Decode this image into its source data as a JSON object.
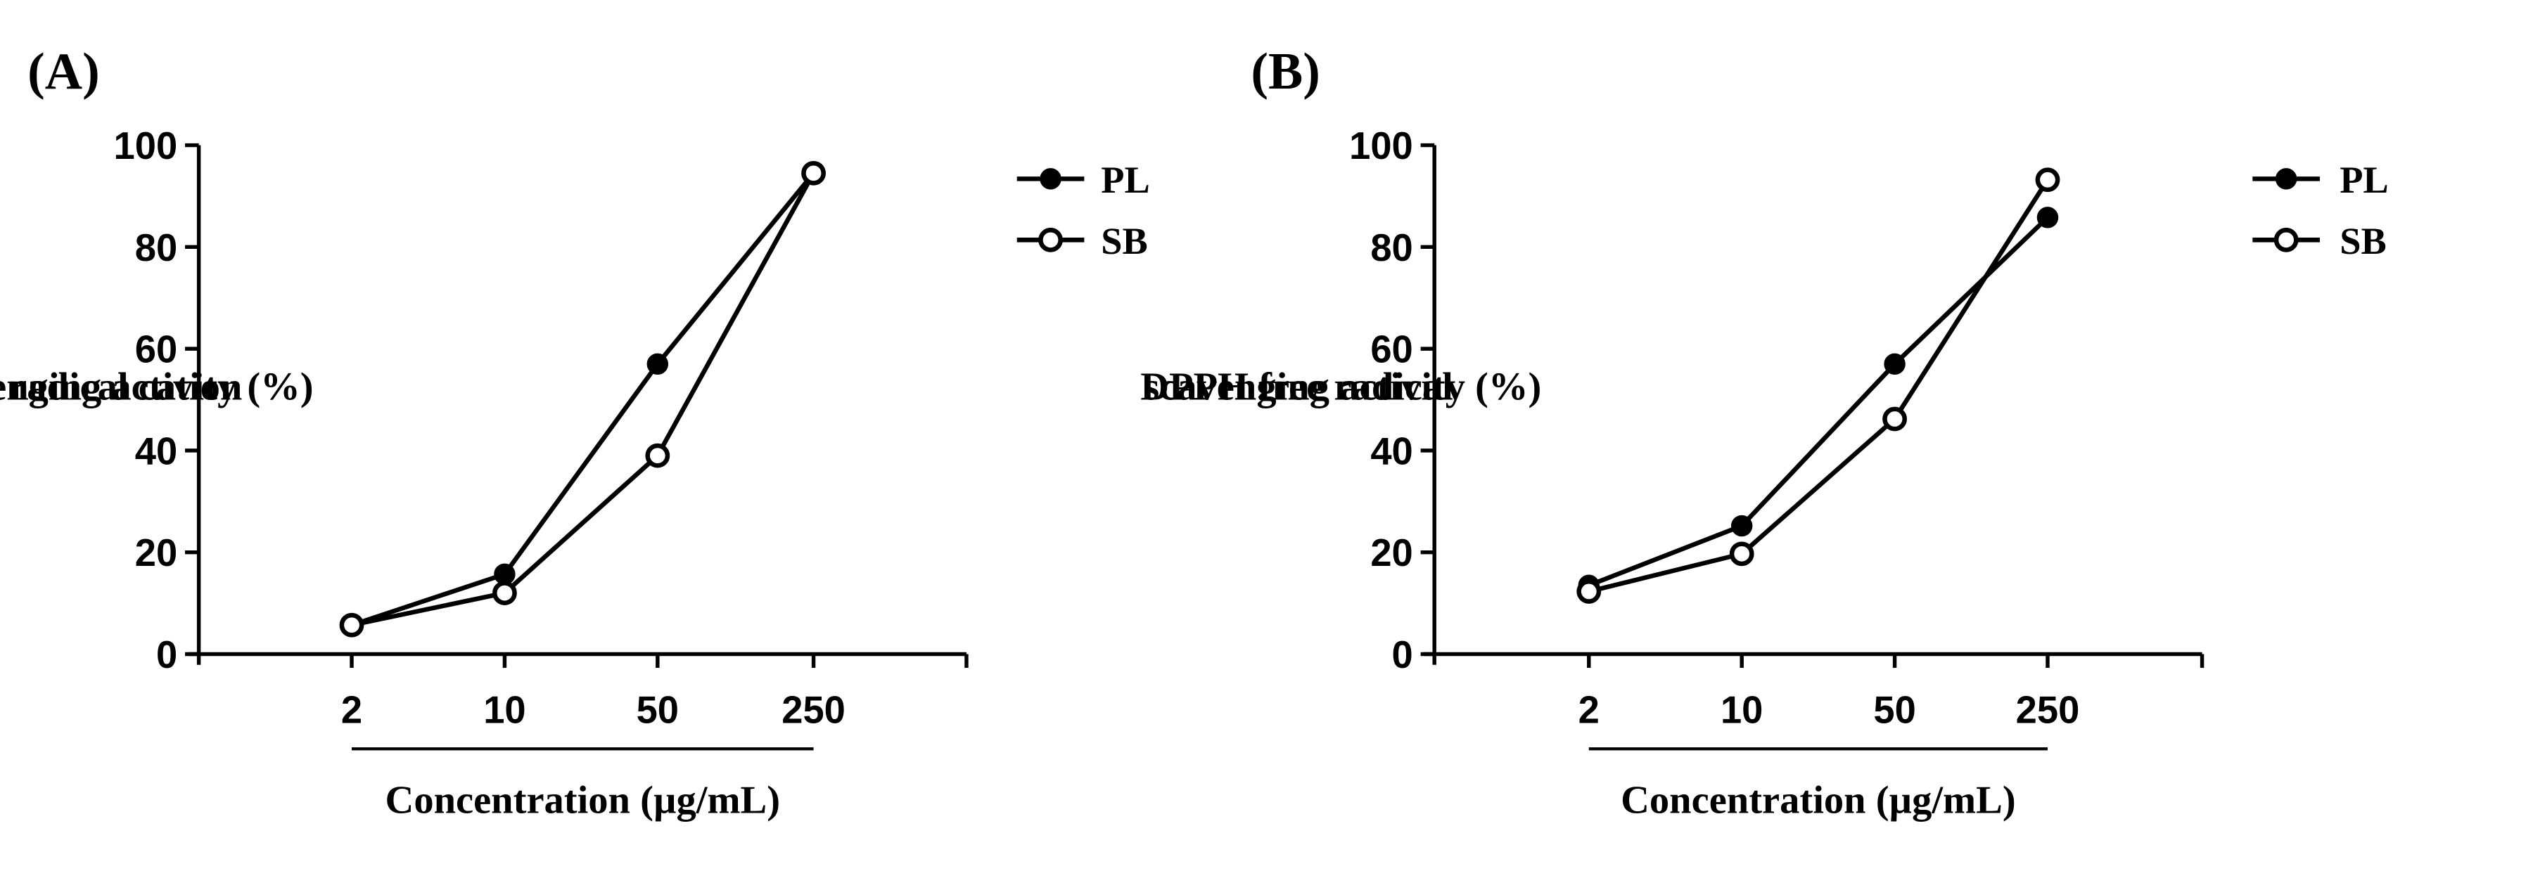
{
  "chart_data": [
    {
      "panel_label": "(A)",
      "type": "line",
      "categories": [
        "2",
        "10",
        "50",
        "250"
      ],
      "ylabel_lines": [
        "ABTS radical cation",
        "scavenging activity (%)"
      ],
      "xlabel": "Concentration (µg/mL)",
      "ylim": [
        0,
        100
      ],
      "yticks": [
        "0",
        "20",
        "40",
        "60",
        "80",
        "100"
      ],
      "grid": false,
      "legend_position": "top-right",
      "series": [
        {
          "name": "PL",
          "marker": "filled-circle",
          "values": [
            5.7,
            15.7,
            57.0,
            94.5
          ]
        },
        {
          "name": "SB",
          "marker": "open-circle",
          "values": [
            5.7,
            12.0,
            39.0,
            94.5
          ]
        }
      ]
    },
    {
      "panel_label": "(B)",
      "type": "line",
      "categories": [
        "2",
        "10",
        "50",
        "250"
      ],
      "ylabel_lines": [
        "DPPH free radical",
        "scavenging activity (%)"
      ],
      "xlabel": "Concentration (µg/mL)",
      "ylim": [
        0,
        100
      ],
      "yticks": [
        "0",
        "20",
        "40",
        "60",
        "80",
        "100"
      ],
      "grid": false,
      "legend_position": "top-right",
      "series": [
        {
          "name": "PL",
          "marker": "filled-circle",
          "values": [
            13.5,
            25.2,
            57.0,
            85.8
          ]
        },
        {
          "name": "SB",
          "marker": "open-circle",
          "values": [
            12.3,
            19.7,
            46.2,
            93.2
          ]
        }
      ]
    }
  ],
  "colors": {
    "line": "#000000",
    "background": "#ffffff"
  }
}
